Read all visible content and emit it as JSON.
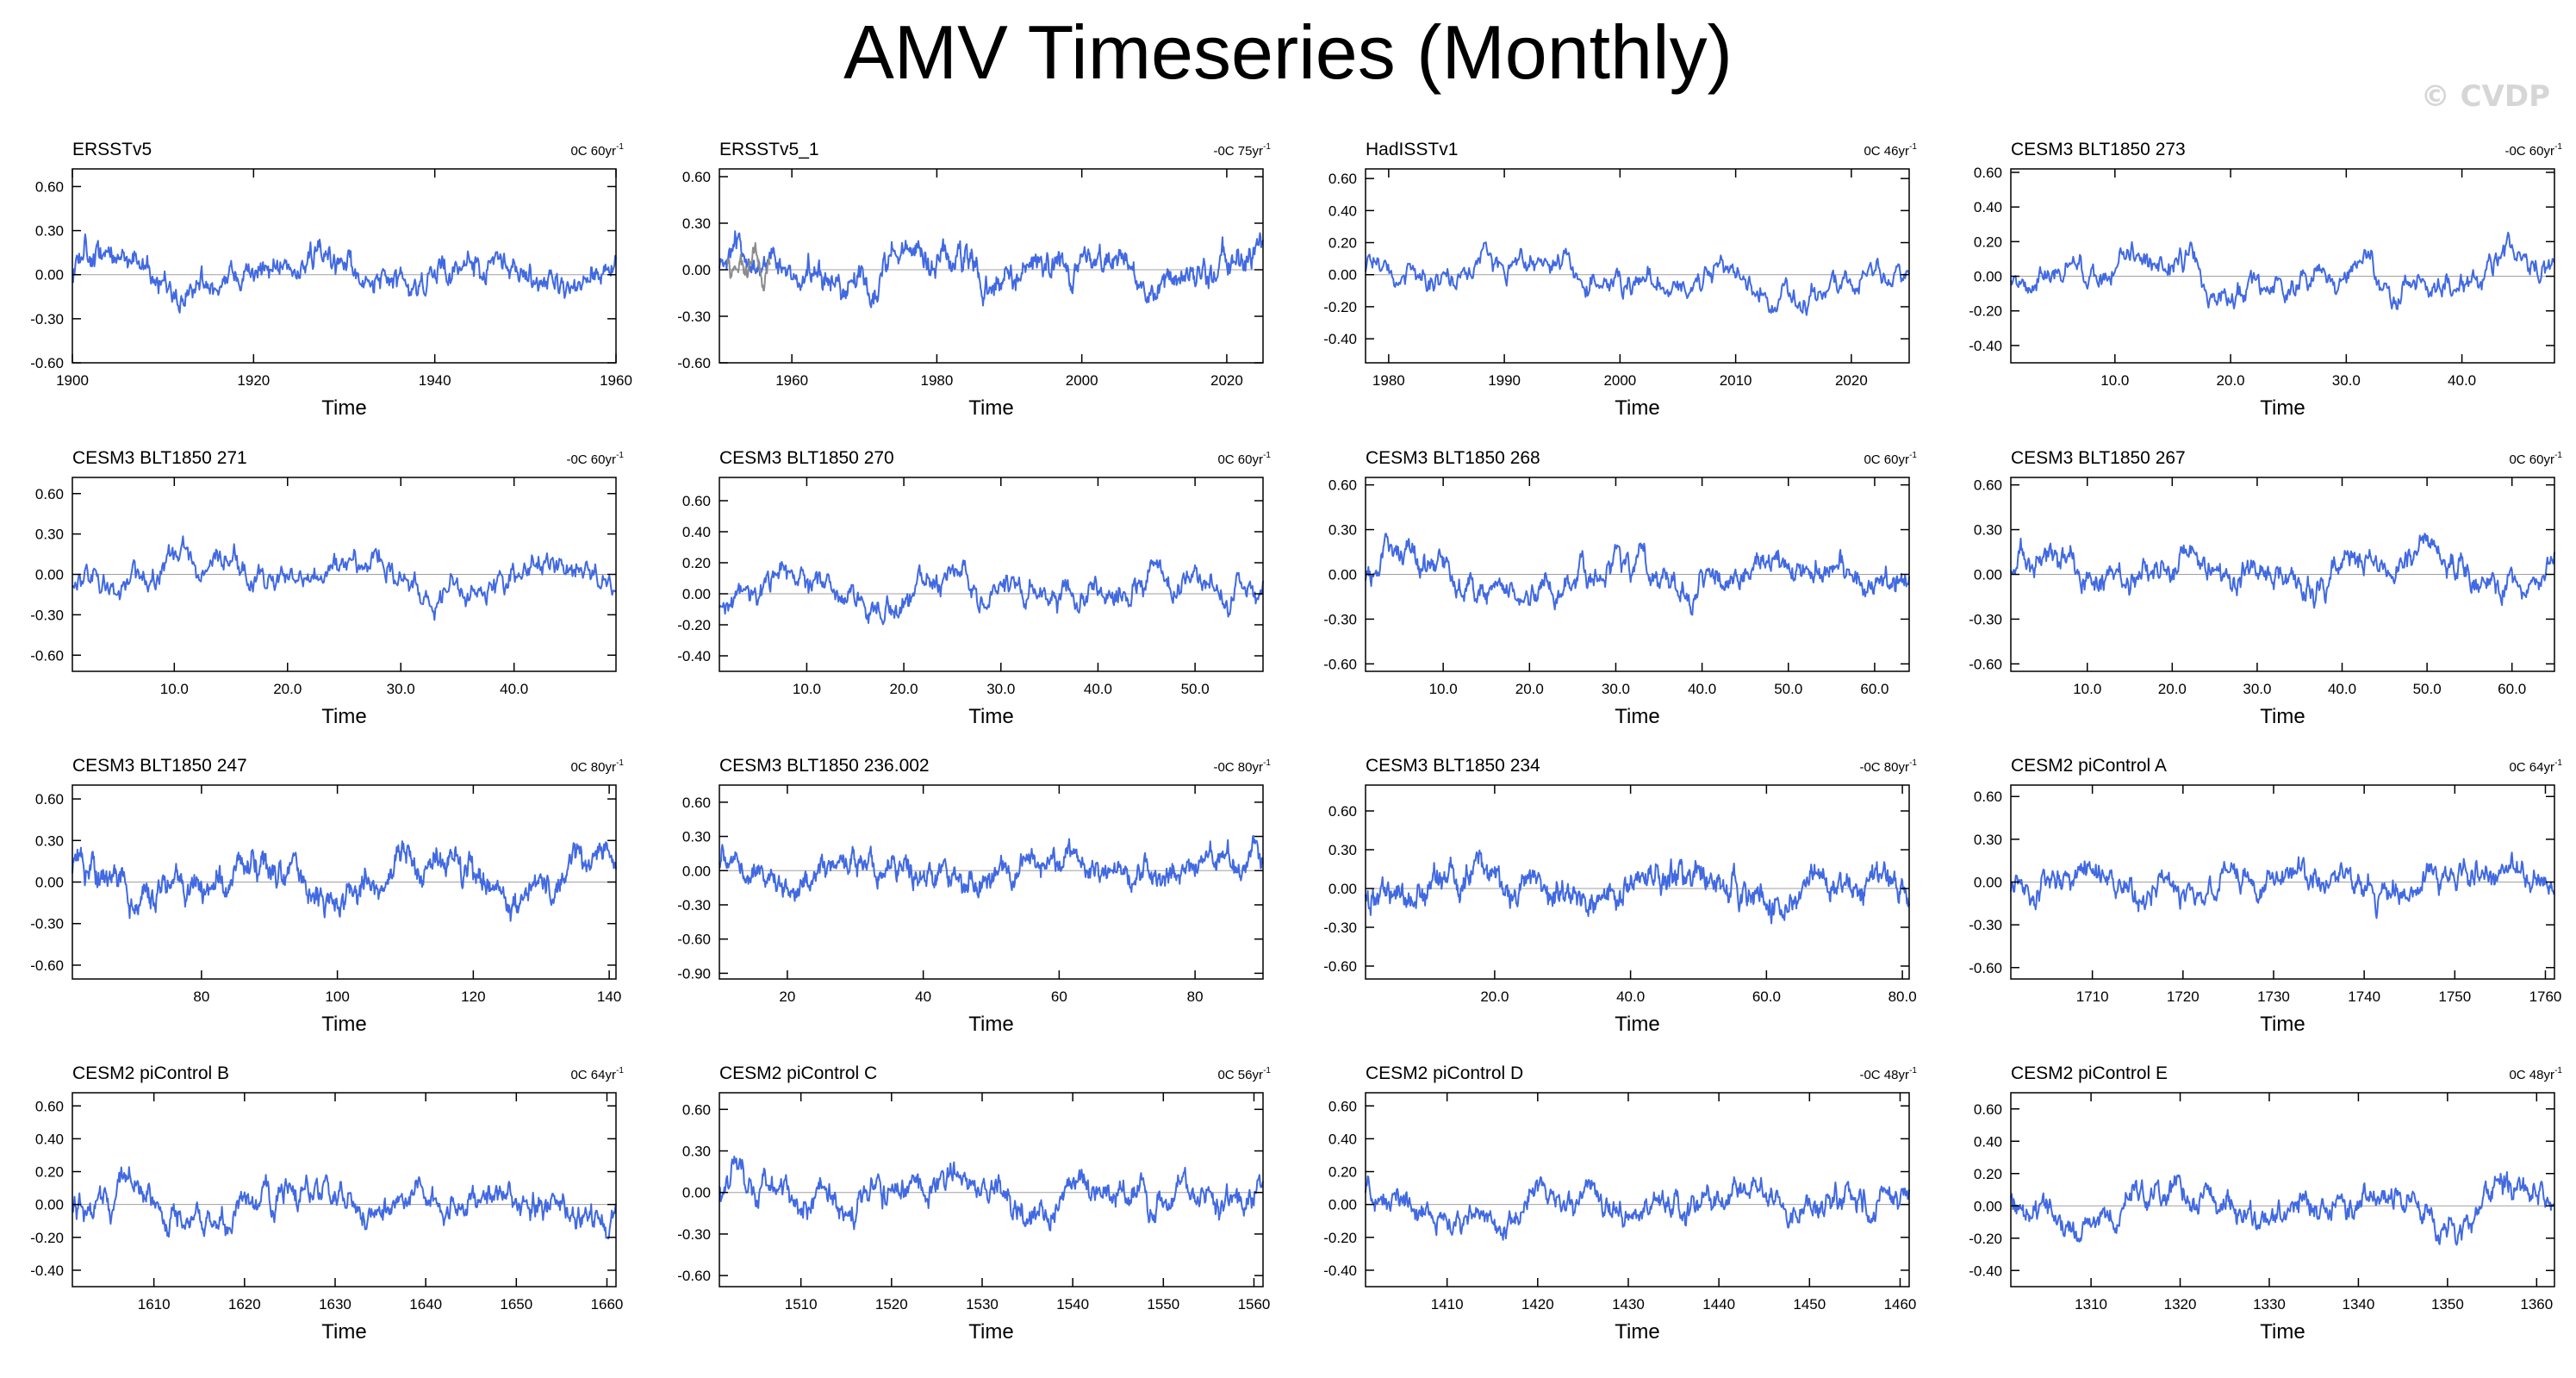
{
  "title": "AMV Timeseries (Monthly)",
  "watermark": "© CVDP",
  "colors": {
    "line": "#4169e1",
    "secondary_line": "#8c8c8c",
    "zero_line": "#a0a0a0",
    "axes": "#000000"
  },
  "chart_data": [
    {
      "type": "line",
      "title": "ERSSTv5",
      "trend": "0C 60yr",
      "xlabel": "Time",
      "xlim": [
        1900,
        1960
      ],
      "ylim": [
        -0.6,
        0.72
      ],
      "xticks": [
        "1900",
        "1920",
        "1940",
        "1960"
      ],
      "yticks": [
        "0.60",
        "0.30",
        "0.00",
        "-0.30",
        "-0.60"
      ],
      "series": [
        {
          "name": "AMV",
          "seed": 11,
          "points": 720,
          "amp": 0.18,
          "phase": 0
        }
      ]
    },
    {
      "type": "line",
      "title": "ERSSTv5_1",
      "trend": "-0C 75yr",
      "xlabel": "Time",
      "xlim": [
        1950,
        2025
      ],
      "ylim": [
        -0.6,
        0.65
      ],
      "xticks": [
        "1960",
        "1980",
        "2000",
        "2020"
      ],
      "yticks": [
        "0.60",
        "0.30",
        "0.00",
        "-0.30",
        "-0.60"
      ],
      "series": [
        {
          "name": "AMV",
          "seed": 23,
          "points": 900,
          "amp": 0.17,
          "phase": 1
        },
        {
          "name": "secondary",
          "seed": 5,
          "points": 72,
          "amp": 0.14,
          "phase": 2,
          "x_start": 1951,
          "x_end": 1957
        }
      ]
    },
    {
      "type": "line",
      "title": "HadISSTv1",
      "trend": "0C 46yr",
      "xlabel": "Time",
      "xlim": [
        1978,
        2025
      ],
      "ylim": [
        -0.55,
        0.66
      ],
      "xticks": [
        "1980",
        "1990",
        "2000",
        "2010",
        "2020"
      ],
      "yticks": [
        "0.60",
        "0.40",
        "0.20",
        "0.00",
        "-0.20",
        "-0.40"
      ],
      "series": [
        {
          "name": "AMV",
          "seed": 37,
          "points": 552,
          "amp": 0.16,
          "phase": 2
        }
      ]
    },
    {
      "type": "line",
      "title": "CESM3 BLT1850 273",
      "trend": "-0C 60yr",
      "xlabel": "Time",
      "xlim": [
        1,
        48
      ],
      "ylim": [
        -0.5,
        0.62
      ],
      "xticks": [
        "10.0",
        "20.0",
        "30.0",
        "40.0"
      ],
      "yticks": [
        "0.60",
        "0.40",
        "0.20",
        "0.00",
        "-0.20",
        "-0.40"
      ],
      "series": [
        {
          "name": "AMV",
          "seed": 41,
          "points": 576,
          "amp": 0.15,
          "phase": 3
        }
      ]
    },
    {
      "type": "line",
      "title": "CESM3 BLT1850 271",
      "trend": "-0C 60yr",
      "xlabel": "Time",
      "xlim": [
        1,
        49
      ],
      "ylim": [
        -0.72,
        0.72
      ],
      "xticks": [
        "10.0",
        "20.0",
        "30.0",
        "40.0"
      ],
      "yticks": [
        "0.60",
        "0.30",
        "0.00",
        "-0.30",
        "-0.60"
      ],
      "series": [
        {
          "name": "AMV",
          "seed": 53,
          "points": 576,
          "amp": 0.2,
          "phase": 4
        }
      ]
    },
    {
      "type": "line",
      "title": "CESM3 BLT1850 270",
      "trend": "0C 60yr",
      "xlabel": "Time",
      "xlim": [
        1,
        57
      ],
      "ylim": [
        -0.5,
        0.75
      ],
      "xticks": [
        "10.0",
        "20.0",
        "30.0",
        "40.0",
        "50.0"
      ],
      "yticks": [
        "0.60",
        "0.40",
        "0.20",
        "0.00",
        "-0.20",
        "-0.40"
      ],
      "series": [
        {
          "name": "AMV",
          "seed": 67,
          "points": 672,
          "amp": 0.17,
          "phase": 5
        }
      ]
    },
    {
      "type": "line",
      "title": "CESM3 BLT1850 268",
      "trend": "0C 60yr",
      "xlabel": "Time",
      "xlim": [
        1,
        64
      ],
      "ylim": [
        -0.65,
        0.65
      ],
      "xticks": [
        "10.0",
        "20.0",
        "30.0",
        "40.0",
        "50.0",
        "60.0"
      ],
      "yticks": [
        "0.60",
        "0.30",
        "0.00",
        "-0.30",
        "-0.60"
      ],
      "series": [
        {
          "name": "AMV",
          "seed": 71,
          "points": 768,
          "amp": 0.17,
          "phase": 6
        }
      ]
    },
    {
      "type": "line",
      "title": "CESM3 BLT1850 267",
      "trend": "0C 60yr",
      "xlabel": "Time",
      "xlim": [
        1,
        65
      ],
      "ylim": [
        -0.65,
        0.65
      ],
      "xticks": [
        "10.0",
        "20.0",
        "30.0",
        "40.0",
        "50.0",
        "60.0"
      ],
      "yticks": [
        "0.60",
        "0.30",
        "0.00",
        "-0.30",
        "-0.60"
      ],
      "series": [
        {
          "name": "AMV",
          "seed": 83,
          "points": 768,
          "amp": 0.17,
          "phase": 7
        }
      ]
    },
    {
      "type": "line",
      "title": "CESM3 BLT1850 247",
      "trend": "0C 80yr",
      "xlabel": "Time",
      "xlim": [
        61,
        141
      ],
      "ylim": [
        -0.7,
        0.7
      ],
      "xticks": [
        "80",
        "100",
        "120",
        "140"
      ],
      "yticks": [
        "0.60",
        "0.30",
        "0.00",
        "-0.30",
        "-0.60"
      ],
      "series": [
        {
          "name": "AMV",
          "seed": 97,
          "points": 960,
          "amp": 0.2,
          "phase": 8
        }
      ]
    },
    {
      "type": "line",
      "title": "CESM3 BLT1850 236.002",
      "trend": "-0C 80yr",
      "xlabel": "Time",
      "xlim": [
        10,
        90
      ],
      "ylim": [
        -0.95,
        0.75
      ],
      "xticks": [
        "20",
        "40",
        "60",
        "80"
      ],
      "yticks": [
        "0.60",
        "0.30",
        "0.00",
        "-0.30",
        "-0.60",
        "-0.90"
      ],
      "series": [
        {
          "name": "AMV",
          "seed": 101,
          "points": 960,
          "amp": 0.2,
          "phase": 9
        }
      ]
    },
    {
      "type": "line",
      "title": "CESM3 BLT1850 234",
      "trend": "-0C 80yr",
      "xlabel": "Time",
      "xlim": [
        1,
        81
      ],
      "ylim": [
        -0.7,
        0.8
      ],
      "xticks": [
        "20.0",
        "40.0",
        "60.0",
        "80.0"
      ],
      "yticks": [
        "0.60",
        "0.30",
        "0.00",
        "-0.30",
        "-0.60"
      ],
      "series": [
        {
          "name": "AMV",
          "seed": 113,
          "points": 960,
          "amp": 0.2,
          "phase": 10
        }
      ]
    },
    {
      "type": "line",
      "title": "CESM2 piControl A",
      "trend": "0C 64yr",
      "xlabel": "Time",
      "xlim": [
        1701,
        1761
      ],
      "ylim": [
        -0.68,
        0.68
      ],
      "xticks": [
        "1710",
        "1720",
        "1730",
        "1740",
        "1750",
        "1760"
      ],
      "yticks": [
        "0.60",
        "0.30",
        "0.00",
        "-0.30",
        "-0.60"
      ],
      "series": [
        {
          "name": "AMV",
          "seed": 127,
          "points": 768,
          "amp": 0.18,
          "phase": 11
        }
      ]
    },
    {
      "type": "line",
      "title": "CESM2 piControl B",
      "trend": "0C 64yr",
      "xlabel": "Time",
      "xlim": [
        1601,
        1661
      ],
      "ylim": [
        -0.5,
        0.68
      ],
      "xticks": [
        "1610",
        "1620",
        "1630",
        "1640",
        "1650",
        "1660"
      ],
      "yticks": [
        "0.60",
        "0.40",
        "0.20",
        "0.00",
        "-0.20",
        "-0.40"
      ],
      "series": [
        {
          "name": "AMV",
          "seed": 131,
          "points": 768,
          "amp": 0.16,
          "phase": 12
        }
      ]
    },
    {
      "type": "line",
      "title": "CESM2 piControl C",
      "trend": "0C 56yr",
      "xlabel": "Time",
      "xlim": [
        1501,
        1561
      ],
      "ylim": [
        -0.68,
        0.72
      ],
      "xticks": [
        "1510",
        "1520",
        "1530",
        "1540",
        "1550",
        "1560"
      ],
      "yticks": [
        "0.60",
        "0.30",
        "0.00",
        "-0.30",
        "-0.60"
      ],
      "series": [
        {
          "name": "AMV",
          "seed": 139,
          "points": 768,
          "amp": 0.2,
          "phase": 13
        }
      ]
    },
    {
      "type": "line",
      "title": "CESM2 piControl D",
      "trend": "-0C 48yr",
      "xlabel": "Time",
      "xlim": [
        1401,
        1461
      ],
      "ylim": [
        -0.5,
        0.68
      ],
      "xticks": [
        "1410",
        "1420",
        "1430",
        "1440",
        "1450",
        "1460"
      ],
      "yticks": [
        "0.60",
        "0.40",
        "0.20",
        "0.00",
        "-0.20",
        "-0.40"
      ],
      "series": [
        {
          "name": "AMV",
          "seed": 149,
          "points": 768,
          "amp": 0.16,
          "phase": 14
        }
      ]
    },
    {
      "type": "line",
      "title": "CESM2 piControl E",
      "trend": "0C 48yr",
      "xlabel": "Time",
      "xlim": [
        1301,
        1362
      ],
      "ylim": [
        -0.5,
        0.7
      ],
      "xticks": [
        "1310",
        "1320",
        "1330",
        "1340",
        "1350",
        "1360"
      ],
      "yticks": [
        "0.60",
        "0.40",
        "0.20",
        "0.00",
        "-0.20",
        "-0.40"
      ],
      "series": [
        {
          "name": "AMV",
          "seed": 151,
          "points": 768,
          "amp": 0.16,
          "phase": 15
        }
      ]
    }
  ]
}
